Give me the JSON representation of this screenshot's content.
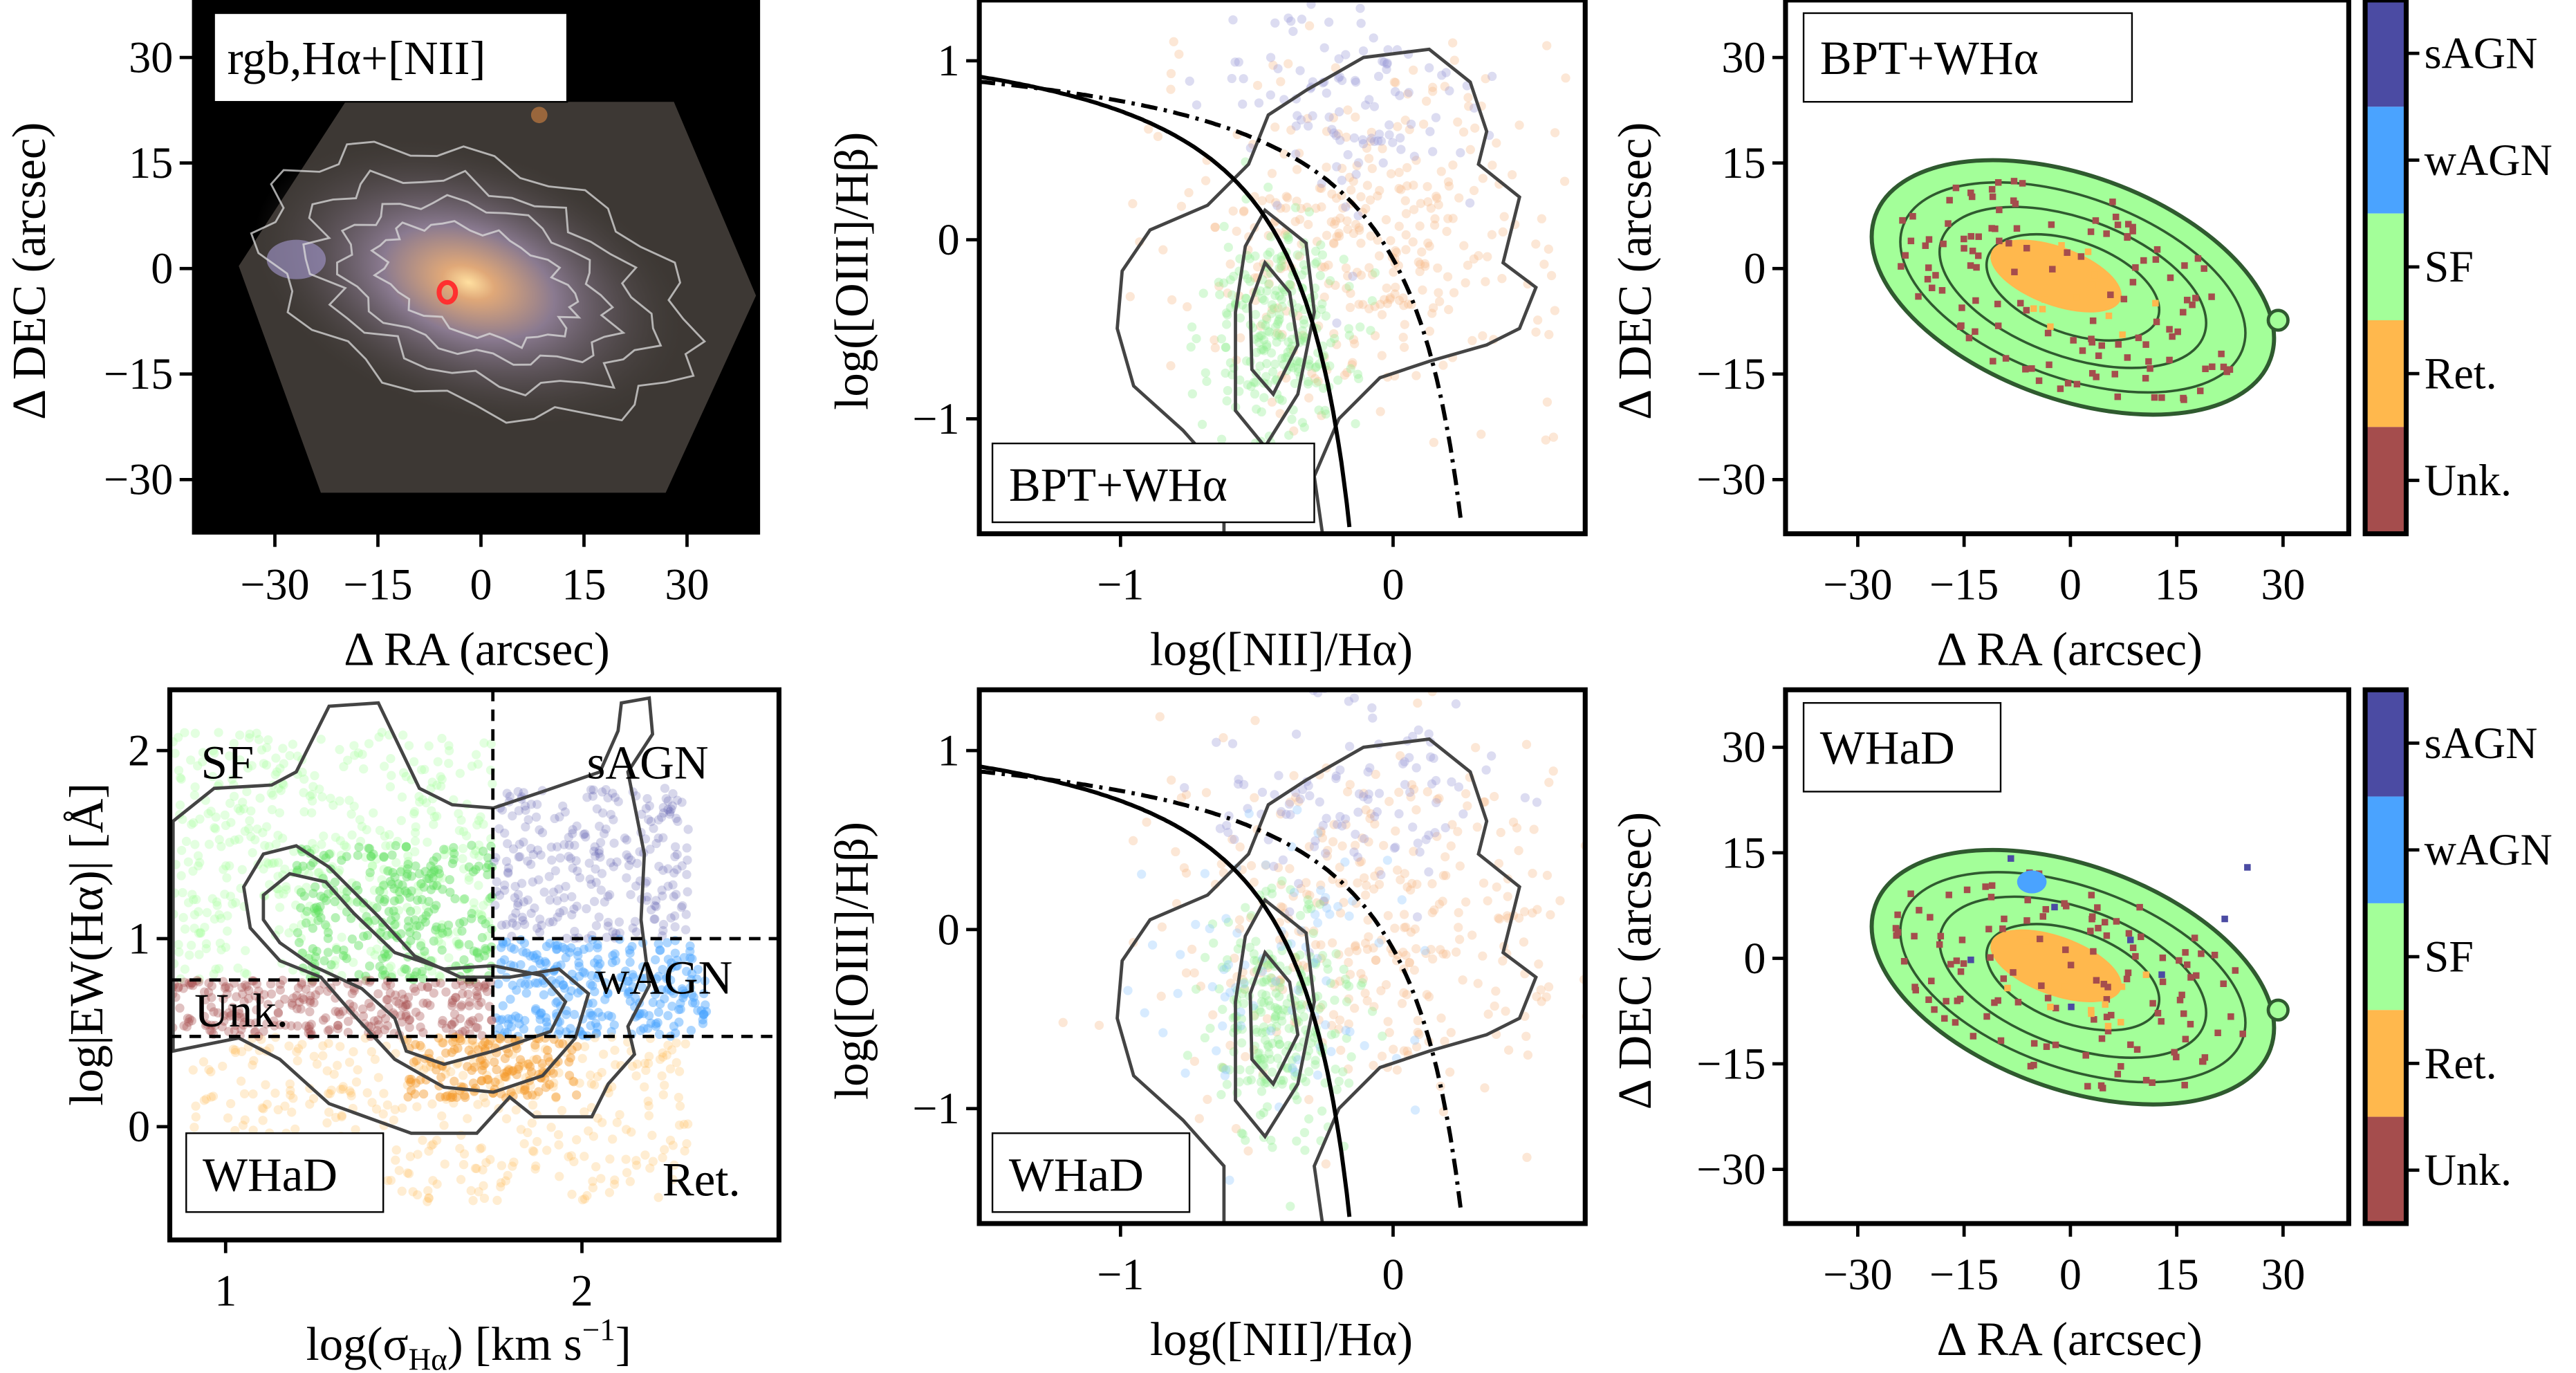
{
  "colors": {
    "sAGN": "#4b4ba3",
    "wAGN": "#4aa3ff",
    "SF": "#a3ff99",
    "Ret": "#ffb84d",
    "Unk": "#a54d4d",
    "contour": "#444444"
  },
  "chart_data": [
    {
      "type": "image",
      "panel": "rgb-image",
      "legend_label": "rgb,Hα+[NII]",
      "xlabel": "Δ RA (arcsec)",
      "ylabel": "Δ DEC (arcsec)",
      "xticks": [
        {
          "v": -30,
          "t": "−30"
        },
        {
          "v": -15,
          "t": "−15"
        },
        {
          "v": 0,
          "t": "0"
        },
        {
          "v": 15,
          "t": "15"
        },
        {
          "v": 30,
          "t": "30"
        }
      ],
      "yticks": [
        {
          "v": 30,
          "t": "30"
        },
        {
          "v": 15,
          "t": "15"
        },
        {
          "v": 0,
          "t": "0"
        },
        {
          "v": -15,
          "t": "−15"
        },
        {
          "v": -30,
          "t": "−30"
        }
      ]
    },
    {
      "type": "scatter",
      "panel": "bpt-diagram-bptwha",
      "legend_label": "BPT+WHα",
      "xlabel": "log([NII]/Hα)",
      "ylabel": "log([OIII]/Hβ)",
      "xlim": [
        -1.52,
        0.7
      ],
      "ylim": [
        -1.64,
        1.26
      ],
      "xticks": [
        {
          "v": -1,
          "t": "−1"
        },
        {
          "v": 0,
          "t": "0"
        }
      ],
      "yticks": [
        {
          "v": 1,
          "t": "1"
        },
        {
          "v": 0,
          "t": "0"
        },
        {
          "v": -1,
          "t": "−1"
        }
      ],
      "lines": [
        {
          "name": "Kauffmann",
          "style": "solid",
          "formula": "0.61/(x-0.05)+1.3"
        },
        {
          "name": "Kewley",
          "style": "dash-dot",
          "formula": "0.61/(x-0.47)+1.19"
        }
      ],
      "series": [
        {
          "name": "SF",
          "center": [
            -0.4,
            -0.5
          ],
          "spread": [
            0.18,
            0.35
          ]
        },
        {
          "name": "Ret.",
          "center": [
            -0.1,
            0.0
          ],
          "spread": [
            0.35,
            0.5
          ]
        },
        {
          "name": "sAGN",
          "center": [
            -0.2,
            0.7
          ],
          "spread": [
            0.25,
            0.3
          ]
        }
      ]
    },
    {
      "type": "heatmap",
      "panel": "map-bptwha",
      "legend_label": "BPT+WHα",
      "xlabel": "Δ RA (arcsec)",
      "ylabel": "Δ DEC (arcsec)",
      "xticks": [
        {
          "v": -30,
          "t": "−30"
        },
        {
          "v": -15,
          "t": "−15"
        },
        {
          "v": 0,
          "t": "0"
        },
        {
          "v": 15,
          "t": "15"
        },
        {
          "v": 30,
          "t": "30"
        }
      ],
      "yticks": [
        {
          "v": 30,
          "t": "30"
        },
        {
          "v": 15,
          "t": "15"
        },
        {
          "v": 0,
          "t": "0"
        },
        {
          "v": -15,
          "t": "−15"
        },
        {
          "v": -30,
          "t": "−30"
        }
      ],
      "colorbar": [
        "sAGN",
        "wAGN",
        "SF",
        "Ret.",
        "Unk."
      ]
    },
    {
      "type": "scatter",
      "panel": "whad-diagram",
      "legend_label": "WHaD",
      "xlabel": {
        "pre": "log(σ",
        "sub": "Hα",
        "mid": ") [km s",
        "sup": "−1",
        "post": "]"
      },
      "ylabel": "log|EW(Hα)| [Å]",
      "xlim": [
        0.84,
        2.55
      ],
      "ylim": [
        -0.6,
        2.32
      ],
      "xticks": [
        {
          "v": 1,
          "t": "1"
        },
        {
          "v": 2,
          "t": "2"
        }
      ],
      "yticks": [
        {
          "v": 2,
          "t": "2"
        },
        {
          "v": 1,
          "t": "1"
        },
        {
          "v": 0,
          "t": "0"
        }
      ],
      "thresholds": {
        "sigma": 1.75,
        "ew_sf": 0.78,
        "ew_ret": 0.48,
        "ew_agn": 1.0
      },
      "region_labels": [
        "SF",
        "sAGN",
        "Unk.",
        "wAGN",
        "Ret."
      ]
    },
    {
      "type": "scatter",
      "panel": "bpt-diagram-whad",
      "legend_label": "WHaD",
      "xlabel": "log([NII]/Hα)",
      "ylabel": "log([OIII]/Hβ)",
      "xlim": [
        -1.52,
        0.7
      ],
      "ylim": [
        -1.64,
        1.26
      ],
      "xticks": [
        {
          "v": -1,
          "t": "−1"
        },
        {
          "v": 0,
          "t": "0"
        }
      ],
      "yticks": [
        {
          "v": 1,
          "t": "1"
        },
        {
          "v": 0,
          "t": "0"
        },
        {
          "v": -1,
          "t": "−1"
        }
      ]
    },
    {
      "type": "heatmap",
      "panel": "map-whad",
      "legend_label": "WHaD",
      "xlabel": "Δ RA (arcsec)",
      "ylabel": "Δ DEC (arcsec)",
      "xticks": [
        {
          "v": -30,
          "t": "−30"
        },
        {
          "v": -15,
          "t": "−15"
        },
        {
          "v": 0,
          "t": "0"
        },
        {
          "v": 15,
          "t": "15"
        },
        {
          "v": 30,
          "t": "30"
        }
      ],
      "yticks": [
        {
          "v": 30,
          "t": "30"
        },
        {
          "v": 15,
          "t": "15"
        },
        {
          "v": 0,
          "t": "0"
        },
        {
          "v": -15,
          "t": "−15"
        },
        {
          "v": -30,
          "t": "−30"
        }
      ],
      "colorbar": [
        "sAGN",
        "wAGN",
        "SF",
        "Ret.",
        "Unk."
      ]
    }
  ]
}
